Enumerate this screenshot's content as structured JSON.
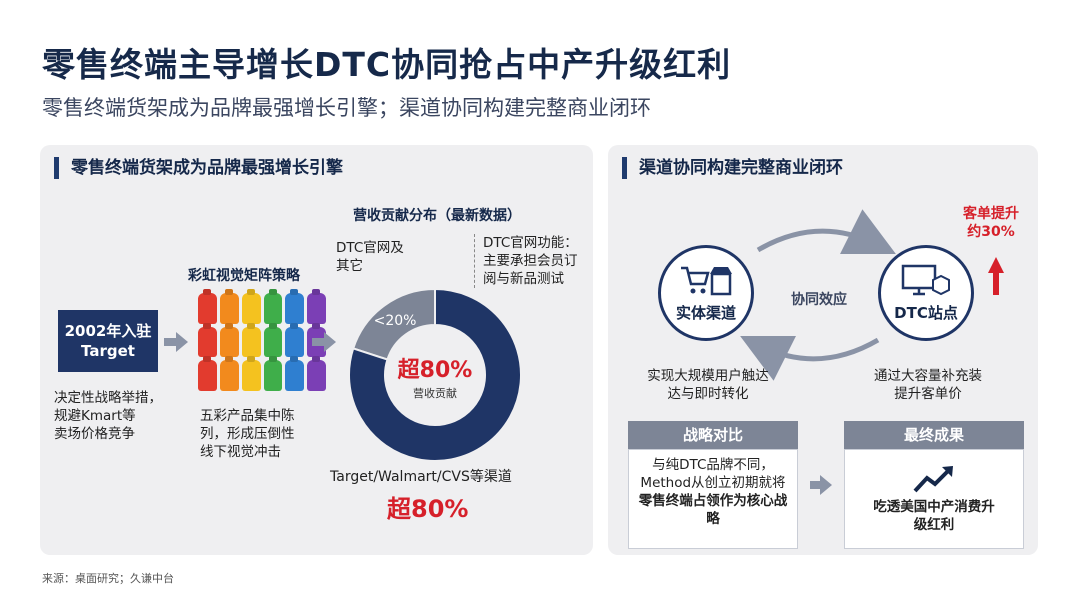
{
  "header": {
    "title": "零售终端主导增长DTC协同抢占中产升级红利",
    "subtitle": "零售终端货架成为品牌最强增长引擎；渠道协同构建完整商业闭环"
  },
  "left_panel": {
    "heading": "零售终端货架成为品牌最强增长引擎",
    "target_box": {
      "line1": "2002年入驻",
      "line2": "Target"
    },
    "target_desc": [
      "决定性战略举措，",
      "规避Kmart等",
      "卖场价格竞争"
    ],
    "matrix_title": "彩虹视觉矩阵策略",
    "matrix_desc": [
      "五彩产品集中陈",
      "列，形成压倒性",
      "线下视觉冲击"
    ],
    "donut_title": "营收贡献分布（最新数据）",
    "dtc_label": [
      "DTC官网及",
      "其它"
    ],
    "dtc_function": [
      "DTC官网功能：",
      "主要承担会员订",
      "阅与新品测试"
    ],
    "dtc_share": "<20%",
    "retail_center_value": "超80%",
    "retail_center_label": "营收贡献",
    "channel_label": "Target/Walmart/CVS等渠道",
    "channel_value": "超80%",
    "colors": [
      "#e23b2e",
      "#f28a1d",
      "#f4c21f",
      "#3fae4a",
      "#2f7fd0",
      "#7b3fb5"
    ]
  },
  "chart_data": {
    "type": "pie",
    "title": "营收贡献分布（最新数据）",
    "categories": [
      "Target/Walmart/CVS等渠道",
      "DTC官网及其它"
    ],
    "values": [
      80,
      20
    ],
    "labels": [
      "超80%",
      "<20%"
    ],
    "colors": [
      "#1f3566",
      "#7d8596"
    ]
  },
  "right_panel": {
    "heading": "渠道协同构建完整商业闭环",
    "node_left": "实体渠道",
    "node_right": "DTC站点",
    "synergy_label": "协同效应",
    "left_desc": [
      "实现大规模用户触达",
      "达与即时转化"
    ],
    "right_desc": [
      "通过大容量补充装",
      "提升客单价"
    ],
    "uplift": [
      "客单提升",
      "约30%"
    ],
    "strategy": {
      "title": "战略对比",
      "lines": [
        "与纯DTC品牌不同，",
        "Method从创立初期就将",
        "零售终端占领作为核心战",
        "略"
      ]
    },
    "result": {
      "title": "最终成果",
      "lines": [
        "吃透美国中产消费升",
        "级红利"
      ]
    }
  },
  "footer": {
    "source": "来源：桌面研究；久谦中台"
  }
}
